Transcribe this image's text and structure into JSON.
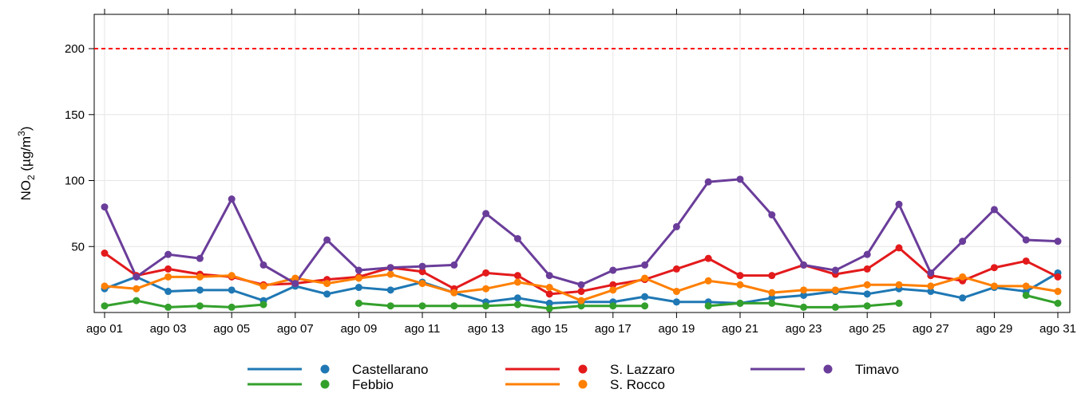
{
  "chart_data": {
    "type": "line",
    "y_label": [
      "NO",
      "2",
      " (µg/m",
      "3",
      ")"
    ],
    "categories": [
      "ago 01",
      null,
      "ago 03",
      null,
      "ago 05",
      null,
      "ago 07",
      null,
      "ago 09",
      null,
      "ago 11",
      null,
      "ago 13",
      null,
      "ago 15",
      null,
      "ago 17",
      null,
      "ago 19",
      null,
      "ago 21",
      null,
      "ago 23",
      null,
      "ago 25",
      null,
      "ago 27",
      null,
      "ago 29",
      null,
      "ago 31"
    ],
    "ylim": [
      0,
      226
    ],
    "yticks": [
      50,
      100,
      150,
      200
    ],
    "grid": true,
    "hline": {
      "value": 200,
      "color": "#ff0000"
    },
    "series": [
      {
        "name": "Castellarano",
        "color": "#1f78b4",
        "values": [
          18,
          27,
          16,
          17,
          17,
          9,
          20,
          14,
          19,
          17,
          23,
          15,
          8,
          11,
          7,
          8,
          8,
          12,
          8,
          8,
          7,
          11,
          13,
          16,
          14,
          18,
          16,
          11,
          19,
          16,
          30
        ]
      },
      {
        "name": "Febbio",
        "color": "#33a02c",
        "values": [
          5,
          9,
          4,
          5,
          4,
          6,
          null,
          null,
          7,
          5,
          5,
          5,
          5,
          6,
          3,
          5,
          5,
          5,
          null,
          5,
          7,
          7,
          4,
          4,
          5,
          7,
          null,
          null,
          null,
          13,
          7
        ]
      },
      {
        "name": "S. Lazzaro",
        "color": "#e31a1c",
        "values": [
          45,
          28,
          33,
          29,
          27,
          21,
          22,
          25,
          27,
          34,
          31,
          18,
          30,
          28,
          14,
          16,
          21,
          25,
          33,
          41,
          28,
          28,
          36,
          29,
          33,
          49,
          28,
          24,
          34,
          39,
          27
        ]
      },
      {
        "name": "S. Rocco",
        "color": "#ff7f00",
        "values": [
          20,
          18,
          27,
          27,
          28,
          20,
          26,
          22,
          26,
          29,
          22,
          15,
          18,
          23,
          19,
          9,
          17,
          26,
          16,
          24,
          21,
          15,
          17,
          17,
          21,
          21,
          20,
          27,
          20,
          20,
          16
        ]
      },
      {
        "name": "Timavo",
        "color": "#6a3d9a",
        "values": [
          80,
          27,
          44,
          41,
          86,
          36,
          22,
          55,
          32,
          34,
          35,
          36,
          75,
          56,
          28,
          21,
          32,
          36,
          65,
          99,
          101,
          74,
          36,
          32,
          44,
          82,
          30,
          54,
          78,
          55,
          54
        ]
      }
    ]
  }
}
